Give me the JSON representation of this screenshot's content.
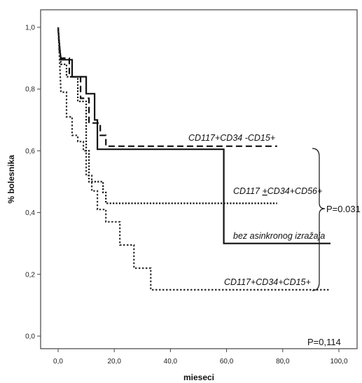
{
  "chart_data": {
    "type": "line",
    "style": "kaplan-meier step curves",
    "xlabel": "mieseci",
    "ylabel": "% bolesnika",
    "xlim": [
      -5,
      100
    ],
    "ylim": [
      -0.05,
      1.05
    ],
    "x_ticks": [
      "0,0",
      "20,0",
      "40,0",
      "60,0",
      "80,0",
      "100,0"
    ],
    "x_tick_values": [
      0,
      20,
      40,
      60,
      80,
      100
    ],
    "y_ticks": [
      "0,0",
      "0,2",
      "0,4",
      "0,6",
      "0,8",
      "1,0"
    ],
    "y_tick_values": [
      0,
      0.2,
      0.4,
      0.6,
      0.8,
      1.0
    ],
    "series": [
      {
        "name": "CD117+CD34 -CD15+",
        "dash": "dashed",
        "color": "#111111",
        "points": [
          [
            0,
            1.0
          ],
          [
            0.5,
            0.92
          ],
          [
            1,
            0.9
          ],
          [
            4,
            0.9
          ],
          [
            4,
            0.84
          ],
          [
            8,
            0.84
          ],
          [
            8,
            0.77
          ],
          [
            11,
            0.77
          ],
          [
            11,
            0.69
          ],
          [
            15,
            0.69
          ],
          [
            15,
            0.65
          ],
          [
            17,
            0.65
          ],
          [
            17,
            0.615
          ],
          [
            78,
            0.615
          ]
        ]
      },
      {
        "name": "bez asinkronog izražaja",
        "dash": "solid",
        "color": "#111111",
        "points": [
          [
            0,
            1.0
          ],
          [
            0.5,
            0.94
          ],
          [
            1,
            0.895
          ],
          [
            5,
            0.895
          ],
          [
            5,
            0.84
          ],
          [
            10,
            0.84
          ],
          [
            10,
            0.785
          ],
          [
            13,
            0.785
          ],
          [
            13,
            0.7
          ],
          [
            14,
            0.7
          ],
          [
            14,
            0.605
          ],
          [
            59,
            0.605
          ],
          [
            59,
            0.3
          ],
          [
            97,
            0.3
          ]
        ]
      },
      {
        "name": "CD117 +CD34+CD56+",
        "dash": "dotted-dense",
        "color": "#111111",
        "points": [
          [
            0,
            1.0
          ],
          [
            0.5,
            0.94
          ],
          [
            1,
            0.88
          ],
          [
            3,
            0.88
          ],
          [
            3,
            0.84
          ],
          [
            7,
            0.84
          ],
          [
            7,
            0.76
          ],
          [
            10,
            0.76
          ],
          [
            10,
            0.6
          ],
          [
            11,
            0.6
          ],
          [
            11,
            0.5
          ],
          [
            16,
            0.5
          ],
          [
            16,
            0.465
          ],
          [
            17,
            0.465
          ],
          [
            17,
            0.43
          ],
          [
            78,
            0.43
          ]
        ]
      },
      {
        "name": "CD117+CD34+CD15+",
        "dash": "dotted",
        "color": "#333333",
        "points": [
          [
            0,
            1.0
          ],
          [
            0.5,
            0.9
          ],
          [
            1,
            0.79
          ],
          [
            3,
            0.79
          ],
          [
            3,
            0.71
          ],
          [
            5,
            0.71
          ],
          [
            5,
            0.65
          ],
          [
            7,
            0.65
          ],
          [
            7,
            0.63
          ],
          [
            9,
            0.63
          ],
          [
            9,
            0.6
          ],
          [
            10,
            0.6
          ],
          [
            10,
            0.52
          ],
          [
            12,
            0.52
          ],
          [
            12,
            0.47
          ],
          [
            14,
            0.47
          ],
          [
            14,
            0.41
          ],
          [
            17,
            0.41
          ],
          [
            17,
            0.37
          ],
          [
            22,
            0.37
          ],
          [
            22,
            0.295
          ],
          [
            27,
            0.295
          ],
          [
            27,
            0.22
          ],
          [
            33,
            0.22
          ],
          [
            33,
            0.15
          ],
          [
            97,
            0.15
          ]
        ]
      }
    ],
    "annotations": {
      "label_a": "CD117+CD34 -CD15+",
      "label_b_prefix": "CD117 ",
      "label_b_plus": "+",
      "label_b_rest": "CD34+CD56+",
      "label_c": "bez asinkronog izražaja",
      "label_d": "CD117+CD34+CD15+",
      "bracket_pvalue": "P=0.031",
      "overall_pvalue": "P=0,114"
    },
    "grid": false,
    "legend": "none"
  }
}
